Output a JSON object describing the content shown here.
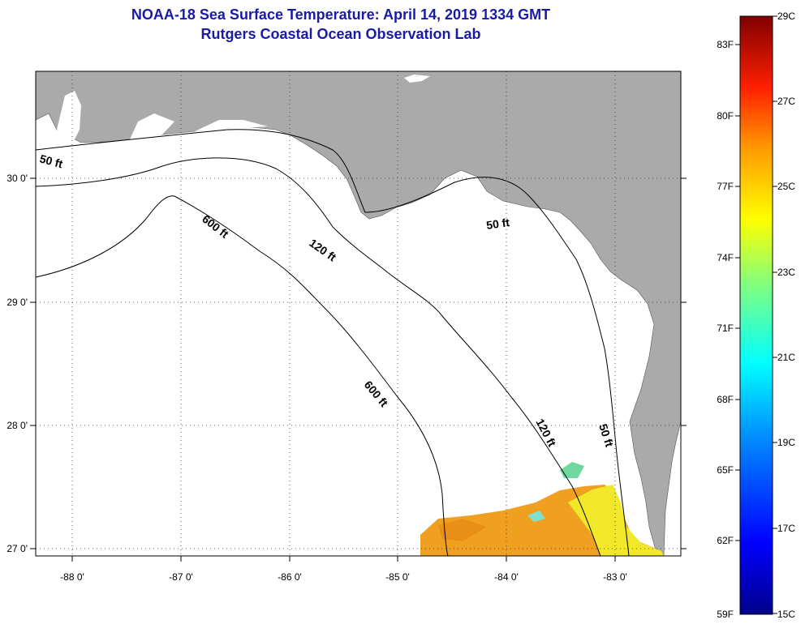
{
  "title": {
    "line1": "NOAA-18 Sea Surface Temperature:  April 14, 2019 1334 GMT",
    "line2": "Rutgers Coastal Ocean Observation Lab"
  },
  "map": {
    "lon_ticks": [
      "-88 0'",
      "-87 0'",
      "-86 0'",
      "-85 0'",
      "-84 0'",
      "-83 0'"
    ],
    "lat_ticks": [
      "30 0'",
      "29 0'",
      "28 0'",
      "27 0'"
    ],
    "contour_labels": [
      "50 ft",
      "600 ft",
      "120 ft",
      "50 ft",
      "600 ft",
      "120 ft",
      "50 ft"
    ],
    "colors": {
      "land": "#aaaaaa",
      "ocean": "#ffffff",
      "sst_warm": "#f0a020",
      "sst_yellow": "#f2e82a"
    }
  },
  "colorbar": {
    "fahrenheit": [
      "83F",
      "80F",
      "77F",
      "74F",
      "71F",
      "68F",
      "65F",
      "62F",
      "59F"
    ],
    "celsius": [
      "29C",
      "27C",
      "25C",
      "23C",
      "21C",
      "19C",
      "17C",
      "15C"
    ]
  }
}
